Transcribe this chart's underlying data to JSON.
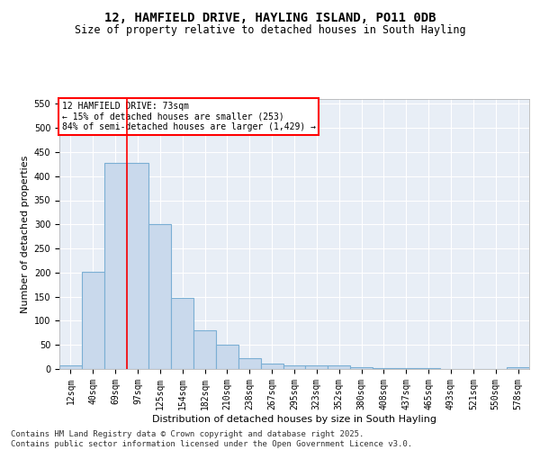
{
  "title_line1": "12, HAMFIELD DRIVE, HAYLING ISLAND, PO11 0DB",
  "title_line2": "Size of property relative to detached houses in South Hayling",
  "xlabel": "Distribution of detached houses by size in South Hayling",
  "ylabel": "Number of detached properties",
  "categories": [
    "12sqm",
    "40sqm",
    "69sqm",
    "97sqm",
    "125sqm",
    "154sqm",
    "182sqm",
    "210sqm",
    "238sqm",
    "267sqm",
    "295sqm",
    "323sqm",
    "352sqm",
    "380sqm",
    "408sqm",
    "437sqm",
    "465sqm",
    "493sqm",
    "521sqm",
    "550sqm",
    "578sqm"
  ],
  "values": [
    8,
    202,
    427,
    427,
    301,
    147,
    80,
    50,
    22,
    11,
    8,
    7,
    7,
    3,
    2,
    1,
    1,
    0,
    0,
    0,
    3
  ],
  "bar_color": "#c9d9ec",
  "bar_edge_color": "#7bafd4",
  "vline_index": 2,
  "vline_color": "red",
  "annotation_text": "12 HAMFIELD DRIVE: 73sqm\n← 15% of detached houses are smaller (253)\n84% of semi-detached houses are larger (1,429) →",
  "annotation_box_color": "white",
  "annotation_box_edge_color": "red",
  "ylim": [
    0,
    560
  ],
  "yticks": [
    0,
    50,
    100,
    150,
    200,
    250,
    300,
    350,
    400,
    450,
    500,
    550
  ],
  "footer_line1": "Contains HM Land Registry data © Crown copyright and database right 2025.",
  "footer_line2": "Contains public sector information licensed under the Open Government Licence v3.0.",
  "bg_color": "#e8eef6",
  "fig_bg_color": "#ffffff",
  "grid_color": "#ffffff",
  "title_fontsize": 10,
  "subtitle_fontsize": 8.5,
  "axis_label_fontsize": 8,
  "tick_fontsize": 7,
  "footer_fontsize": 6.5
}
